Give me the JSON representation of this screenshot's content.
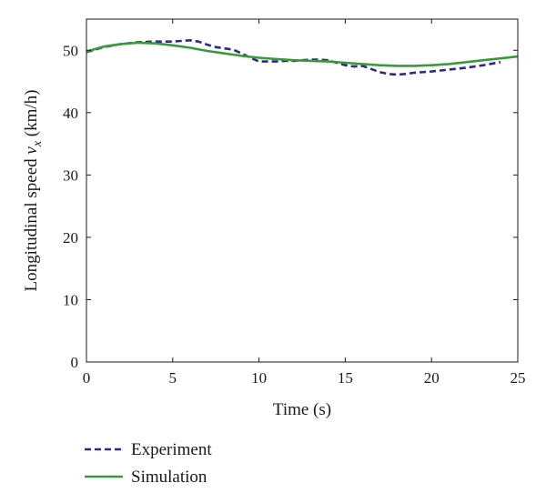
{
  "colors": {
    "experiment": "#2b2a8a",
    "simulation": "#3a9a3a",
    "axis": "#1a1a1a"
  },
  "chart_data": {
    "type": "line",
    "title": "",
    "xlabel": "Time (s)",
    "ylabel": {
      "prefix": "Longitudinal speed ",
      "var_base": "v",
      "var_sub": "x",
      "suffix": " (km/h)"
    },
    "xlim": [
      0,
      25
    ],
    "ylim": [
      0,
      55
    ],
    "xticks": [
      "0",
      "5",
      "10",
      "15",
      "20",
      "25"
    ],
    "yticks": [
      "0",
      "10",
      "20",
      "30",
      "40",
      "50"
    ],
    "grid": false,
    "legend_position": "bottom-left",
    "series": [
      {
        "name": "Experiment",
        "style": "dashed",
        "x": [
          0,
          1,
          2,
          3,
          4,
          5,
          5.5,
          6,
          6.5,
          7,
          7.5,
          8,
          8.5,
          9,
          9.5,
          10,
          10.5,
          11,
          11.5,
          12,
          12.5,
          13,
          13.5,
          14,
          14.5,
          15,
          15.5,
          16,
          16.5,
          17,
          17.5,
          18,
          18.5,
          19,
          20,
          21,
          22,
          23,
          24
        ],
        "y": [
          49.7,
          50.5,
          51.0,
          51.3,
          51.4,
          51.4,
          51.5,
          51.6,
          51.4,
          50.9,
          50.5,
          50.3,
          50.1,
          49.5,
          48.8,
          48.2,
          48.2,
          48.2,
          48.3,
          48.3,
          48.4,
          48.5,
          48.5,
          48.4,
          48.0,
          47.6,
          47.4,
          47.5,
          47.0,
          46.5,
          46.2,
          46.1,
          46.2,
          46.4,
          46.6,
          46.9,
          47.2,
          47.6,
          48.1
        ]
      },
      {
        "name": "Simulation",
        "style": "solid",
        "x": [
          0,
          1,
          2,
          3,
          4,
          5,
          6,
          7,
          8,
          9,
          10,
          11,
          12,
          13,
          14,
          15,
          16,
          17,
          18,
          19,
          20,
          21,
          22,
          23,
          24,
          25
        ],
        "y": [
          49.8,
          50.6,
          51.0,
          51.2,
          51.1,
          50.8,
          50.4,
          49.9,
          49.5,
          49.1,
          48.8,
          48.6,
          48.4,
          48.3,
          48.2,
          48.0,
          47.8,
          47.6,
          47.5,
          47.5,
          47.6,
          47.8,
          48.1,
          48.4,
          48.7,
          49.0
        ]
      }
    ]
  }
}
